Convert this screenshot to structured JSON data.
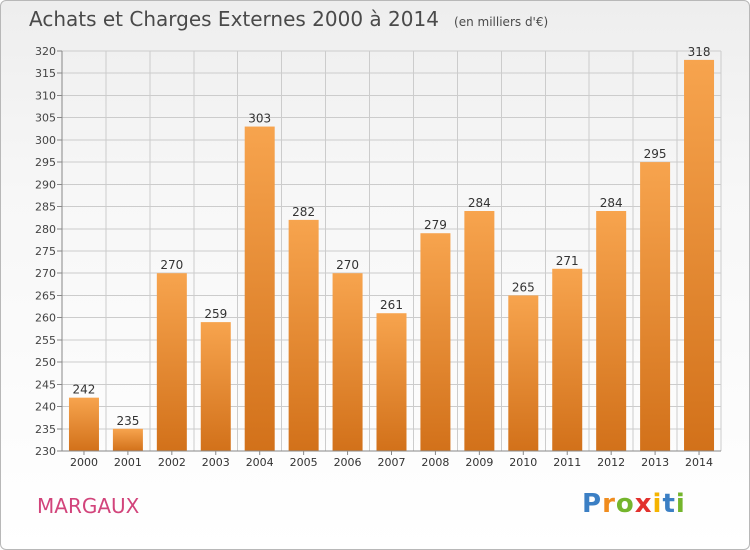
{
  "header": {
    "title": "Achats et Charges Externes 2000 à 2014",
    "subtitle": "(en milliers d'€)"
  },
  "commune": "MARGAUX",
  "logo": {
    "letters": [
      "P",
      "r",
      "o",
      "x",
      "i",
      "t",
      "i"
    ],
    "colors": [
      "#3b7fc4",
      "#f08c1e",
      "#74b52c",
      "#e2312d",
      "#f5b400",
      "#3b7fc4",
      "#74b52c"
    ]
  },
  "colors": {
    "bar_light": "#f7a44e",
    "bar_dark": "#d2711a",
    "grid": "#cccccc",
    "axis": "#888888"
  },
  "chart_data": {
    "type": "bar",
    "categories": [
      "2000",
      "2001",
      "2002",
      "2003",
      "2004",
      "2005",
      "2006",
      "2007",
      "2008",
      "2009",
      "2010",
      "2011",
      "2012",
      "2013",
      "2014"
    ],
    "values": [
      242,
      235,
      270,
      259,
      303,
      282,
      270,
      261,
      279,
      284,
      265,
      271,
      284,
      295,
      318
    ],
    "title": "Achats et Charges Externes 2000 à 2014",
    "subtitle": "(en milliers d'€)",
    "ylim": [
      230,
      320
    ],
    "yticks": [
      230,
      235,
      240,
      245,
      250,
      255,
      260,
      265,
      270,
      275,
      280,
      285,
      290,
      295,
      300,
      305,
      310,
      315,
      320
    ],
    "grid": true,
    "data_labels": true
  }
}
